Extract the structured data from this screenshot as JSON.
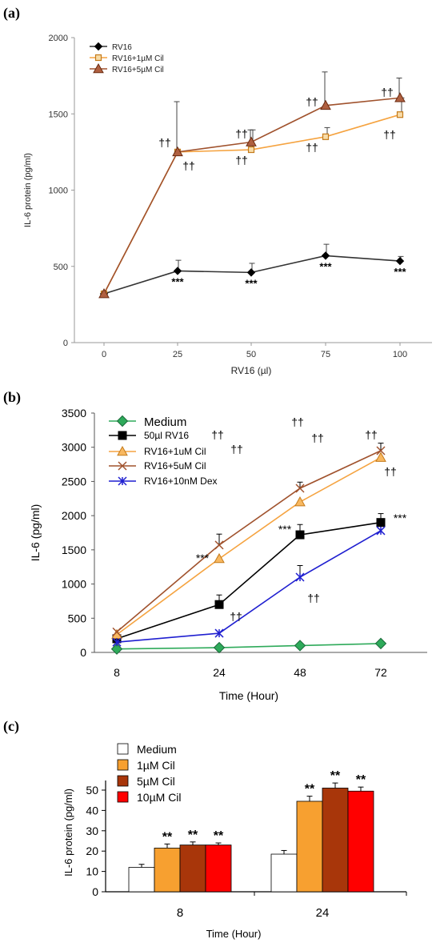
{
  "figure": {
    "panel_labels": [
      "(a)",
      "(b)",
      "(c)"
    ]
  },
  "chart_data": [
    {
      "panel": "(a)",
      "type": "line",
      "xlabel": "RV16 (µl)",
      "ylabel": "IL-6 protein (pg/ml)",
      "x": [
        0,
        25,
        50,
        75,
        100
      ],
      "x_tick_labels": [
        "0",
        "25",
        "50",
        "75",
        "100"
      ],
      "ylim": [
        0,
        2000
      ],
      "y_ticks": [
        0,
        500,
        1000,
        1500,
        2000
      ],
      "grid": false,
      "legend_position": "top-left",
      "series": [
        {
          "name": "RV16",
          "color": "#000000",
          "marker": "diamond",
          "values": [
            320,
            470,
            460,
            570,
            535
          ],
          "error": [
            0,
            70,
            60,
            75,
            30
          ],
          "annotations": [
            "",
            "***",
            "***",
            "***",
            "***"
          ],
          "annotation_side": "below"
        },
        {
          "name": "RV16+1µM Cil",
          "color": "#f5a340",
          "marker": "square-open",
          "values": [
            320,
            1250,
            1265,
            1350,
            1495
          ],
          "error": [
            0,
            0,
            130,
            60,
            110
          ],
          "annotations": [
            "",
            "††",
            "††",
            "††",
            "††"
          ],
          "annotation_side": "below"
        },
        {
          "name": "RV16+5µM Cil",
          "color": "#a0522d",
          "marker": "triangle",
          "values": [
            320,
            1250,
            1315,
            1555,
            1605
          ],
          "error": [
            0,
            330,
            80,
            220,
            130
          ],
          "annotations": [
            "",
            "††",
            "††",
            "††",
            "††"
          ],
          "annotation_side": "above"
        }
      ]
    },
    {
      "panel": "(b)",
      "type": "line",
      "xlabel": "Time (Hour)",
      "ylabel": "IL-6 (pg/ml)",
      "x": [
        8,
        24,
        48,
        72
      ],
      "x_tick_labels": [
        "8",
        "24",
        "48",
        "72"
      ],
      "ylim": [
        0,
        3500
      ],
      "y_ticks": [
        0,
        500,
        1000,
        1500,
        2000,
        2500,
        3000,
        3500
      ],
      "grid": false,
      "legend_position": "top-left",
      "series": [
        {
          "name": "Medium",
          "color": "#2eaa5a",
          "marker": "diamond-filled",
          "values": [
            50,
            70,
            100,
            130
          ],
          "error": [
            0,
            0,
            0,
            0
          ]
        },
        {
          "name": " 50µl RV16",
          "color": "#000000",
          "marker": "square-filled",
          "values": [
            200,
            700,
            1720,
            1900
          ],
          "error": [
            0,
            140,
            150,
            130
          ],
          "annotations": [
            "",
            "***",
            "***",
            "***"
          ]
        },
        {
          "name": "RV16+1uM Cil",
          "color": "#f5a340",
          "marker": "triangle",
          "values": [
            260,
            1370,
            2200,
            2850
          ],
          "error": [
            0,
            0,
            0,
            0
          ],
          "annotations": [
            "",
            "††",
            "††",
            "††"
          ]
        },
        {
          "name": "RV16+5uM Cil",
          "color": "#a0522d",
          "marker": "x",
          "values": [
            300,
            1570,
            2400,
            2950
          ],
          "error": [
            0,
            160,
            90,
            110
          ],
          "annotations": [
            "",
            "††",
            "††",
            "††"
          ]
        },
        {
          "name": "RV16+10nM Dex",
          "color": "#1f1fd0",
          "marker": "star",
          "values": [
            150,
            280,
            1100,
            1780
          ],
          "error": [
            0,
            0,
            170,
            100
          ],
          "annotations": [
            "",
            "††",
            "††",
            ""
          ]
        }
      ]
    },
    {
      "panel": "(c)",
      "type": "bar",
      "xlabel": "Time (Hour)",
      "ylabel": "IL-6 protein (pg/ml)",
      "categories": [
        "8",
        "24"
      ],
      "ylim": [
        0,
        50
      ],
      "y_ticks": [
        0,
        10,
        20,
        30,
        40,
        50
      ],
      "grid": false,
      "legend_position": "top-left",
      "series": [
        {
          "name": "Medium",
          "color": "#ffffff",
          "values": [
            12,
            18.5
          ],
          "error": [
            1.5,
            1.8
          ],
          "annotations": [
            "",
            ""
          ]
        },
        {
          "name": "1µM Cil",
          "color": "#f7a030",
          "values": [
            21.5,
            44.5
          ],
          "error": [
            2,
            2.5
          ],
          "annotations": [
            "**",
            "**"
          ]
        },
        {
          "name": "5µM Cil",
          "color": "#a8360a",
          "values": [
            23,
            51
          ],
          "error": [
            1.5,
            2.5
          ],
          "annotations": [
            "**",
            "**"
          ]
        },
        {
          "name": "10µM Cil",
          "color": "#ff0000",
          "values": [
            23,
            49.5
          ],
          "error": [
            1,
            2
          ],
          "annotations": [
            "**",
            "**"
          ]
        }
      ]
    }
  ]
}
